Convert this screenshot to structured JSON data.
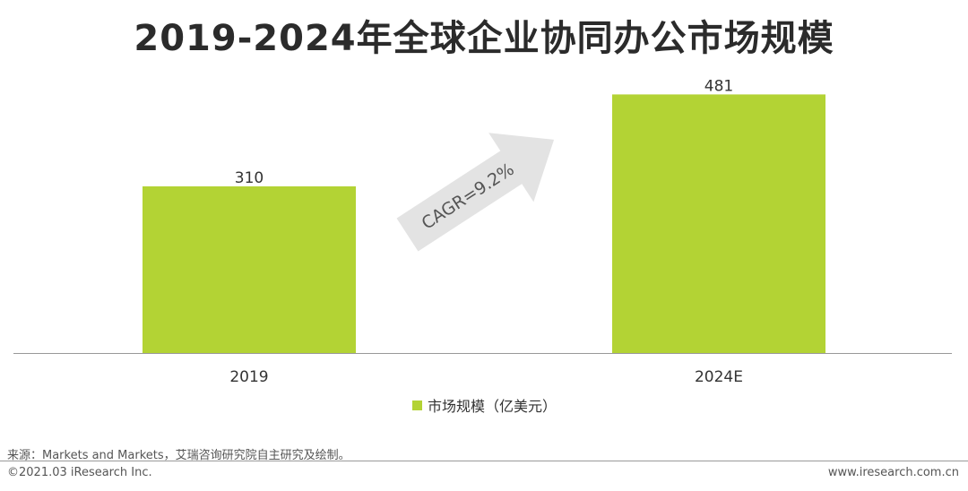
{
  "title": "2019-2024年全球企业协同办公市场规模",
  "colors": {
    "bar": "#b3d334",
    "arrow": "#e3e3e3",
    "axis": "#999999",
    "text": "#333333"
  },
  "chart_data": {
    "type": "bar",
    "categories": [
      "2019",
      "2024E"
    ],
    "series": [
      {
        "name": "市场规模（亿美元）",
        "values": [
          310,
          481
        ]
      }
    ],
    "ylim": [
      0,
      550
    ],
    "annotation": "CAGR=9.2%",
    "legend_position": "bottom"
  },
  "footer": {
    "source": "来源：Markets and Markets，艾瑞咨询研究院自主研究及绘制。",
    "copyright": "©2021.03 iResearch Inc.",
    "website": "www.iresearch.com.cn"
  }
}
